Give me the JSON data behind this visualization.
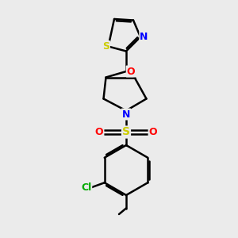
{
  "background_color": "#ebebeb",
  "bond_color": "#000000",
  "bond_width": 1.8,
  "atom_colors": {
    "S_thiazole": "#cccc00",
    "S_sulfonyl": "#cccc00",
    "N": "#0000ff",
    "O": "#ff0000",
    "Cl": "#00aa00",
    "C": "#000000"
  },
  "font_size": 9
}
